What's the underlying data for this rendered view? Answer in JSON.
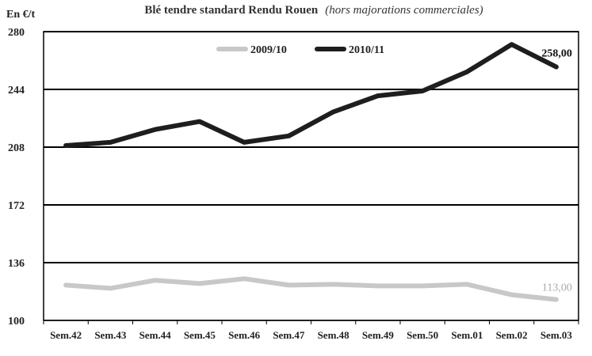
{
  "chart_data": {
    "type": "line",
    "title": "Blé tendre standard Rendu Rouen",
    "subtitle": "(hors majorations commerciales)",
    "ylabel": "En €/t",
    "xlabel": "",
    "ylim": [
      100,
      280
    ],
    "yticks": [
      100,
      136,
      172,
      208,
      244,
      280
    ],
    "grid": true,
    "legend_position": "top-center",
    "categories": [
      "Sem.42",
      "Sem.43",
      "Sem.44",
      "Sem.45",
      "Sem.46",
      "Sem.47",
      "Sem.48",
      "Sem.49",
      "Sem.50",
      "Sem.01",
      "Sem.02",
      "Sem.03"
    ],
    "series": [
      {
        "name": "2009/10",
        "color": "#c8c8c8",
        "values": [
          122,
          120,
          125,
          123,
          126,
          122,
          122.5,
          121.5,
          121.5,
          122.5,
          116,
          113
        ],
        "end_label": "113,00"
      },
      {
        "name": "2010/11",
        "color": "#1e1e1e",
        "values": [
          209,
          211,
          219,
          224,
          211,
          215,
          230,
          240,
          243,
          255,
          272,
          258
        ],
        "end_label": "258,00"
      }
    ]
  }
}
